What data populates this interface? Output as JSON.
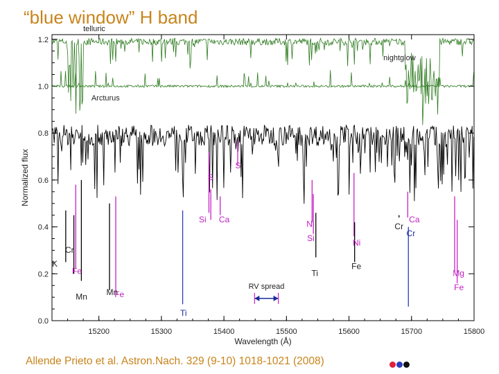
{
  "slide": {
    "title": "“blue window” H band",
    "citation": "Allende Prieto et al. Astron.Nach. 329 (9-10) 1018-1021 (2008)",
    "dot_colors": [
      "#e0203c",
      "#2a3cc0",
      "#111111"
    ]
  },
  "chart_data": {
    "type": "line",
    "xlabel": "Wavelength (Å)",
    "ylabel": "Normalized flux",
    "xlim": [
      15125,
      15800
    ],
    "ylim": [
      0.0,
      1.22
    ],
    "x_ticks": [
      "15200",
      "15300",
      "15400",
      "15500",
      "15600",
      "15700",
      "15800"
    ],
    "y_ticks": [
      "0.0",
      "0.2",
      "0.4",
      "0.6",
      "0.8",
      "1.0",
      "1.2"
    ],
    "grid": false,
    "series": [
      {
        "name": "telluric",
        "color": "#2c7a1e",
        "baseline": 1.19
      },
      {
        "name": "nightglow",
        "color": "#2c7a1e",
        "baseline": 1.0
      },
      {
        "name": "Arcturus",
        "color": "#000000",
        "baseline": 0.79
      }
    ],
    "series_labels": [
      {
        "text": "telluric",
        "x": 15175,
        "y": 1.235
      },
      {
        "text": "nightglow",
        "x": 15655,
        "y": 1.11
      },
      {
        "text": "Arcturus",
        "x": 15188,
        "y": 0.94
      }
    ],
    "line_markers": [
      {
        "x": 15147,
        "top": 0.47,
        "bottom": 0.25,
        "color": "#000000",
        "label": "Cr",
        "lx": 15146,
        "ly": 0.29
      },
      {
        "x": 15160,
        "top": 0.45,
        "bottom": 0.2,
        "color": "#000000",
        "label": "K",
        "lx": 15125,
        "ly": 0.23
      },
      {
        "x": 15163,
        "top": 0.58,
        "bottom": 0.22,
        "color": "#c820c8",
        "label": "Fe",
        "lx": 15157,
        "ly": 0.2
      },
      {
        "x": 15172,
        "top": 0.6,
        "bottom": 0.17,
        "color": "#000000",
        "label": "Mn",
        "lx": 15163,
        "ly": 0.09
      },
      {
        "x": 15217,
        "top": 0.5,
        "bottom": 0.13,
        "color": "#000000",
        "label": "Mn",
        "lx": 15212,
        "ly": 0.11
      },
      {
        "x": 15227,
        "top": 0.53,
        "bottom": 0.12,
        "color": "#c820c8",
        "label": "Fe",
        "lx": 15225,
        "ly": 0.1
      },
      {
        "x": 15334,
        "top": 0.47,
        "bottom": 0.07,
        "color": "#2a3cc0",
        "label": "Ti",
        "lx": 15330,
        "ly": 0.02
      },
      {
        "x": 15376,
        "top": 0.72,
        "bottom": 0.46,
        "color": "#c820c8",
        "label": "S",
        "lx": 15374,
        "ly": 0.6
      },
      {
        "x": 15379,
        "top": 0.56,
        "bottom": 0.43,
        "color": "#c820c8",
        "label": "Si",
        "lx": 15360,
        "ly": 0.42
      },
      {
        "x": 15394,
        "top": 0.53,
        "bottom": 0.45,
        "color": "#c820c8",
        "label": "Ca",
        "lx": 15392,
        "ly": 0.42
      },
      {
        "x": 15422,
        "top": 0.77,
        "bottom": 0.66,
        "color": "#c820c8",
        "label": "S",
        "lx": 15418,
        "ly": 0.65
      },
      {
        "x": 15541,
        "top": 0.6,
        "bottom": 0.42,
        "color": "#c820c8",
        "label": "Ni",
        "lx": 15532,
        "ly": 0.4
      },
      {
        "x": 15543,
        "top": 0.54,
        "bottom": 0.37,
        "color": "#c820c8",
        "label": "Si",
        "lx": 15533,
        "ly": 0.34
      },
      {
        "x": 15547,
        "top": 0.46,
        "bottom": 0.27,
        "color": "#000000",
        "label": "Ti",
        "lx": 15540,
        "ly": 0.19
      },
      {
        "x": 15608,
        "top": 0.63,
        "bottom": 0.36,
        "color": "#c820c8",
        "label": "Ni",
        "lx": 15606,
        "ly": 0.32
      },
      {
        "x": 15609,
        "top": 0.42,
        "bottom": 0.25,
        "color": "#000000",
        "label": "Fe",
        "lx": 15604,
        "ly": 0.22
      },
      {
        "x": 15680,
        "top": 0.45,
        "bottom": 0.44,
        "color": "#000000",
        "label": "Cr",
        "lx": 15673,
        "ly": 0.39
      },
      {
        "x": 15694,
        "top": 0.55,
        "bottom": 0.44,
        "color": "#c820c8",
        "label": "Ca",
        "lx": 15696,
        "ly": 0.42
      },
      {
        "x": 15695,
        "top": 0.4,
        "bottom": 0.06,
        "color": "#2a3cc0",
        "label": "Cr",
        "lx": 15692,
        "ly": 0.36
      },
      {
        "x": 15769,
        "top": 0.53,
        "bottom": 0.21,
        "color": "#c820c8",
        "label": "Mg",
        "lx": 15766,
        "ly": 0.19
      },
      {
        "x": 15773,
        "top": 0.43,
        "bottom": 0.16,
        "color": "#c820c8",
        "label": "Fe",
        "lx": 15768,
        "ly": 0.13
      }
    ],
    "rv_spread": {
      "label": "RV spread",
      "x_start": 15449,
      "x_end": 15487,
      "y": 0.095
    }
  }
}
